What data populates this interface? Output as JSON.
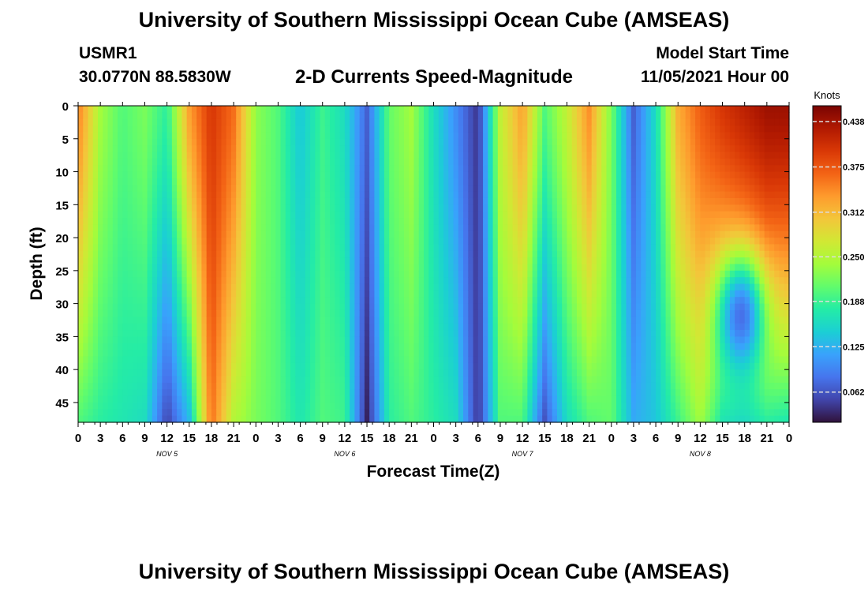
{
  "header": {
    "title": "University of Southern Mississippi Ocean Cube (AMSEAS)",
    "station_id": "USMR1",
    "station_coords": "30.0770N  88.5830W",
    "subtitle": "2-D Currents Speed-Magnitude",
    "model_start_label": "Model Start Time",
    "model_start_value": "11/05/2021 Hour 00"
  },
  "footer": {
    "title": "University of Southern Mississippi Ocean Cube (AMSEAS)"
  },
  "colors": {
    "palette": [
      "#30123b",
      "#4145ab",
      "#4675ed",
      "#39a2fc",
      "#1bcfd4",
      "#24eca6",
      "#61fc6c",
      "#a4fc3b",
      "#d1e834",
      "#f3c63a",
      "#fe9b2d",
      "#f36315",
      "#d93806",
      "#b11901",
      "#7a0402"
    ]
  },
  "chart_data": {
    "type": "heatmap",
    "xlabel": "Forecast Time(Z)",
    "ylabel": "Depth (ft)",
    "x_tick_labels": [
      "0",
      "3",
      "6",
      "9",
      "12",
      "15",
      "18",
      "21",
      "0",
      "3",
      "6",
      "9",
      "12",
      "15",
      "18",
      "21",
      "0",
      "3",
      "6",
      "9",
      "12",
      "15",
      "18",
      "21",
      "0",
      "3",
      "6",
      "9",
      "12",
      "15",
      "18",
      "21",
      "0"
    ],
    "day_labels": [
      "NOV 5",
      "NOV 6",
      "NOV 7",
      "NOV 8"
    ],
    "xlim_hours": [
      0,
      96
    ],
    "y_ticks": [
      0,
      5,
      10,
      15,
      20,
      25,
      30,
      35,
      40,
      45
    ],
    "ylim": [
      0,
      48
    ],
    "y_inverted": true,
    "colorbar": {
      "label": "Knots",
      "ticks": [
        "0.062",
        "0.125",
        "0.188",
        "0.250",
        "0.312",
        "0.375",
        "0.438"
      ],
      "range": [
        0.02,
        0.46
      ]
    },
    "surface_profile": [
      {
        "hour": 0,
        "value": 0.35
      },
      {
        "hour": 3,
        "value": 0.24
      },
      {
        "hour": 6,
        "value": 0.2
      },
      {
        "hour": 9,
        "value": 0.22
      },
      {
        "hour": 12,
        "value": 0.18
      },
      {
        "hour": 15,
        "value": 0.33
      },
      {
        "hour": 18,
        "value": 0.4
      },
      {
        "hour": 21,
        "value": 0.36
      },
      {
        "hour": 24,
        "value": 0.23
      },
      {
        "hour": 27,
        "value": 0.2
      },
      {
        "hour": 30,
        "value": 0.14
      },
      {
        "hour": 33,
        "value": 0.19
      },
      {
        "hour": 36,
        "value": 0.16
      },
      {
        "hour": 39,
        "value": 0.07
      },
      {
        "hour": 42,
        "value": 0.21
      },
      {
        "hour": 45,
        "value": 0.24
      },
      {
        "hour": 48,
        "value": 0.16
      },
      {
        "hour": 51,
        "value": 0.1
      },
      {
        "hour": 54,
        "value": 0.04
      },
      {
        "hour": 57,
        "value": 0.26
      },
      {
        "hour": 60,
        "value": 0.33
      },
      {
        "hour": 63,
        "value": 0.2
      },
      {
        "hour": 66,
        "value": 0.26
      },
      {
        "hour": 69,
        "value": 0.34
      },
      {
        "hour": 72,
        "value": 0.22
      },
      {
        "hour": 75,
        "value": 0.07
      },
      {
        "hour": 78,
        "value": 0.16
      },
      {
        "hour": 81,
        "value": 0.32
      },
      {
        "hour": 84,
        "value": 0.37
      },
      {
        "hour": 87,
        "value": 0.4
      },
      {
        "hour": 90,
        "value": 0.42
      },
      {
        "hour": 93,
        "value": 0.44
      },
      {
        "hour": 96,
        "value": 0.44
      }
    ],
    "bottom_profile": [
      {
        "hour": 0,
        "value": 0.2
      },
      {
        "hour": 3,
        "value": 0.18
      },
      {
        "hour": 6,
        "value": 0.17
      },
      {
        "hour": 9,
        "value": 0.16
      },
      {
        "hour": 12,
        "value": 0.05
      },
      {
        "hour": 15,
        "value": 0.13
      },
      {
        "hour": 18,
        "value": 0.36
      },
      {
        "hour": 21,
        "value": 0.25
      },
      {
        "hour": 24,
        "value": 0.22
      },
      {
        "hour": 27,
        "value": 0.2
      },
      {
        "hour": 30,
        "value": 0.17
      },
      {
        "hour": 33,
        "value": 0.2
      },
      {
        "hour": 36,
        "value": 0.19
      },
      {
        "hour": 39,
        "value": 0.03
      },
      {
        "hour": 42,
        "value": 0.18
      },
      {
        "hour": 45,
        "value": 0.2
      },
      {
        "hour": 48,
        "value": 0.18
      },
      {
        "hour": 51,
        "value": 0.16
      },
      {
        "hour": 54,
        "value": 0.04
      },
      {
        "hour": 57,
        "value": 0.2
      },
      {
        "hour": 60,
        "value": 0.2
      },
      {
        "hour": 63,
        "value": 0.06
      },
      {
        "hour": 66,
        "value": 0.16
      },
      {
        "hour": 69,
        "value": 0.2
      },
      {
        "hour": 72,
        "value": 0.21
      },
      {
        "hour": 75,
        "value": 0.12
      },
      {
        "hour": 78,
        "value": 0.14
      },
      {
        "hour": 81,
        "value": 0.19
      },
      {
        "hour": 84,
        "value": 0.24
      },
      {
        "hour": 87,
        "value": 0.17
      },
      {
        "hour": 90,
        "value": 0.16
      },
      {
        "hour": 93,
        "value": 0.18
      },
      {
        "hour": 96,
        "value": 0.17
      }
    ],
    "features": [
      {
        "hour": 89.5,
        "depth": 32,
        "value": 0.08
      }
    ]
  }
}
